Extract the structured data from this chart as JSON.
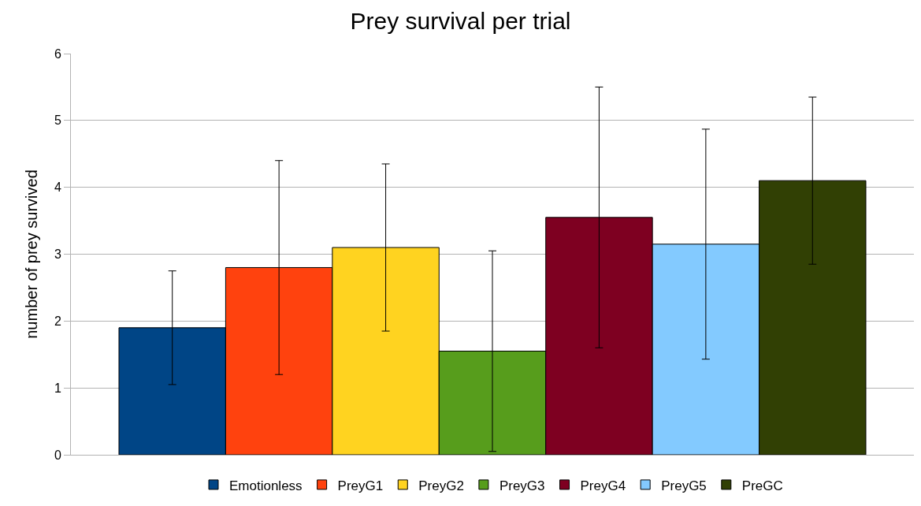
{
  "chart_data": {
    "type": "bar",
    "title": "Prey survival per trial",
    "ylabel": "number of prey survived",
    "categories": [
      null
    ],
    "series": [
      {
        "name": "Emotionless",
        "color": "#004586",
        "values": [
          1.9
        ],
        "errors": [
          0.85
        ]
      },
      {
        "name": "PreyG1",
        "color": "#ff420e",
        "values": [
          2.8
        ],
        "errors": [
          1.6
        ]
      },
      {
        "name": "PreyG2",
        "color": "#ffd320",
        "values": [
          3.1
        ],
        "errors": [
          1.25
        ]
      },
      {
        "name": "PreyG3",
        "color": "#579d1c",
        "values": [
          1.55
        ],
        "errors": [
          1.5
        ]
      },
      {
        "name": "PreyG4",
        "color": "#7e0021",
        "values": [
          3.55
        ],
        "errors": [
          1.95
        ]
      },
      {
        "name": "PreyG5",
        "color": "#83caff",
        "values": [
          3.15
        ],
        "errors": [
          1.72
        ]
      },
      {
        "name": "PreGC",
        "color": "#314004",
        "values": [
          4.1
        ],
        "errors": [
          1.25
        ]
      }
    ],
    "ylim": [
      0,
      6
    ],
    "yticks": [
      0,
      1,
      2,
      3,
      4,
      5,
      6
    ],
    "grid": "y",
    "legend": "bottom"
  }
}
